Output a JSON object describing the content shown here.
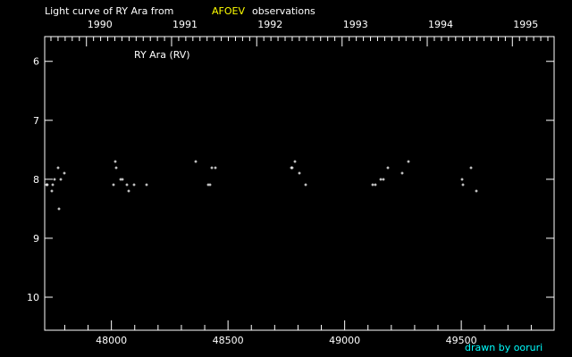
{
  "chart_data": {
    "type": "scatter",
    "title_prefix": "Light curve of RY Ara from",
    "title_source": "AFOEV",
    "title_suffix": "observations",
    "legend_label": "RY Ara (RV)",
    "credit": "drawn by ooruri",
    "xlim": [
      47714,
      49898
    ],
    "ylim": [
      10.56,
      5.58
    ],
    "y_inverted": true,
    "x_ticks": [
      48000,
      48500,
      49000,
      49500
    ],
    "x_tick_labels": [
      "48000",
      "48500",
      "49000",
      "49500"
    ],
    "y_ticks": [
      6,
      7,
      8,
      9,
      10
    ],
    "y_tick_labels": [
      "6",
      "7",
      "8",
      "9",
      "10"
    ],
    "top_axis_years": [
      {
        "label": "1990",
        "jd": 47893
      },
      {
        "label": "1991",
        "jd": 48258
      },
      {
        "label": "1992",
        "jd": 48623
      },
      {
        "label": "1993",
        "jd": 48989
      },
      {
        "label": "1994",
        "jd": 49354
      },
      {
        "label": "1995",
        "jd": 49719
      }
    ],
    "grid": false,
    "colors": {
      "background": "#000000",
      "axes": "#ffffff",
      "points": "#ffffff",
      "source": "#ffff00",
      "credit": "#00ffff"
    },
    "points": [
      [
        47721,
        8.1
      ],
      [
        47727,
        8.1
      ],
      [
        47745,
        8.2
      ],
      [
        47749,
        8.1
      ],
      [
        47756,
        8.0
      ],
      [
        47772,
        7.8
      ],
      [
        47775,
        8.5
      ],
      [
        47783,
        8.0
      ],
      [
        47798,
        7.9
      ],
      [
        48009,
        8.1
      ],
      [
        48016,
        7.7
      ],
      [
        48020,
        7.8
      ],
      [
        48039,
        8.0
      ],
      [
        48047,
        8.0
      ],
      [
        48066,
        8.1
      ],
      [
        48074,
        8.2
      ],
      [
        48097,
        8.1
      ],
      [
        48099,
        8.1
      ],
      [
        48150,
        8.1
      ],
      [
        48361,
        7.7
      ],
      [
        48414,
        8.1
      ],
      [
        48421,
        8.1
      ],
      [
        48430,
        7.8
      ],
      [
        48445,
        7.8
      ],
      [
        48772,
        7.8
      ],
      [
        48774,
        7.8
      ],
      [
        48786,
        7.7
      ],
      [
        48805,
        7.9
      ],
      [
        48832,
        8.1
      ],
      [
        49121,
        8.1
      ],
      [
        49130,
        8.1
      ],
      [
        49156,
        8.0
      ],
      [
        49165,
        8.0
      ],
      [
        49184,
        7.8
      ],
      [
        49245,
        7.9
      ],
      [
        49272,
        7.7
      ],
      [
        49505,
        8.0
      ],
      [
        49509,
        8.1
      ],
      [
        49540,
        7.8
      ],
      [
        49566,
        8.2
      ]
    ]
  }
}
